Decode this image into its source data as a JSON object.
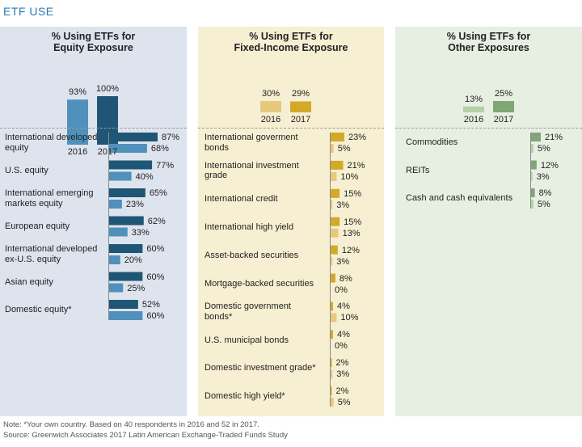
{
  "title": "ETF USE",
  "colors": {
    "equity_bg": "#dde4ee",
    "equity_2016": "#4f91bb",
    "equity_2017": "#1f5676",
    "fixed_bg": "#f7efd2",
    "fixed_2016": "#e7c97e",
    "fixed_2017": "#d3a92a",
    "other_bg": "#e7efe3",
    "other_2016": "#b5cfa6",
    "other_2017": "#7fa675"
  },
  "chart_data": [
    {
      "type": "bar",
      "title_lines": [
        "% Using ETFs for",
        "Equity Exposure"
      ],
      "summary": {
        "categories": [
          "2016",
          "2017"
        ],
        "values": [
          93,
          100
        ],
        "labels": [
          "93%",
          "100%"
        ]
      },
      "categories": [
        [
          "International developed",
          "equity"
        ],
        [
          "U.S. equity"
        ],
        [
          "International emerging",
          "markets equity"
        ],
        [
          "European equity"
        ],
        [
          "International developed",
          "ex-U.S. equity"
        ],
        [
          "Asian equity"
        ],
        [
          "Domestic equity*"
        ]
      ],
      "series": [
        {
          "name": "2017",
          "values": [
            87,
            77,
            65,
            62,
            60,
            60,
            52
          ],
          "labels": [
            "87%",
            "77%",
            "65%",
            "62%",
            "60%",
            "60%",
            "52%"
          ]
        },
        {
          "name": "2016",
          "values": [
            68,
            40,
            23,
            33,
            20,
            25,
            60
          ],
          "labels": [
            "68%",
            "40%",
            "23%",
            "33%",
            "20%",
            "25%",
            "60%"
          ]
        }
      ],
      "xlim": [
        0,
        100
      ]
    },
    {
      "type": "bar",
      "title_lines": [
        "% Using ETFs for",
        "Fixed-Income Exposure"
      ],
      "summary": {
        "categories": [
          "2016",
          "2017"
        ],
        "values": [
          30,
          29
        ],
        "labels": [
          "30%",
          "29%"
        ]
      },
      "categories": [
        [
          "International goverment",
          "bonds"
        ],
        [
          "International investment",
          "grade"
        ],
        [
          "International credit"
        ],
        [
          "International high yield"
        ],
        [
          "Asset-backed securities"
        ],
        [
          "Mortgage-backed securities"
        ],
        [
          "Domestic government",
          "bonds*"
        ],
        [
          "U.S. municipal bonds"
        ],
        [
          "Domestic investment grade*"
        ],
        [
          "Domestic high yield*"
        ]
      ],
      "series": [
        {
          "name": "2017",
          "values": [
            23,
            21,
            15,
            15,
            12,
            8,
            4,
            4,
            2,
            2
          ],
          "labels": [
            "23%",
            "21%",
            "15%",
            "15%",
            "12%",
            "8%",
            "4%",
            "4%",
            "2%",
            "2%"
          ]
        },
        {
          "name": "2016",
          "values": [
            5,
            10,
            3,
            13,
            3,
            0,
            10,
            0,
            3,
            5
          ],
          "labels": [
            "5%",
            "10%",
            "3%",
            "13%",
            "3%",
            "0%",
            "10%",
            "0%",
            "3%",
            "5%"
          ]
        }
      ],
      "xlim": [
        0,
        100
      ]
    },
    {
      "type": "bar",
      "title_lines": [
        "% Using ETFs for",
        "Other Exposures"
      ],
      "summary": {
        "categories": [
          "2016",
          "2017"
        ],
        "values": [
          13,
          25
        ],
        "labels": [
          "13%",
          "25%"
        ]
      },
      "categories": [
        [
          "Commodities"
        ],
        [
          "REITs"
        ],
        [
          "Cash and cash equivalents"
        ]
      ],
      "series": [
        {
          "name": "2017",
          "values": [
            21,
            12,
            8
          ],
          "labels": [
            "21%",
            "12%",
            "8%"
          ]
        },
        {
          "name": "2016",
          "values": [
            5,
            3,
            5
          ],
          "labels": [
            "5%",
            "3%",
            "5%"
          ]
        }
      ],
      "xlim": [
        0,
        100
      ]
    }
  ],
  "notes": [
    "Note: *Your own country. Based on 40 respondents in 2016 and 52 in 2017.",
    "Source: Greenwich Associates 2017 Latin American Exchange-Traded Funds Study"
  ]
}
